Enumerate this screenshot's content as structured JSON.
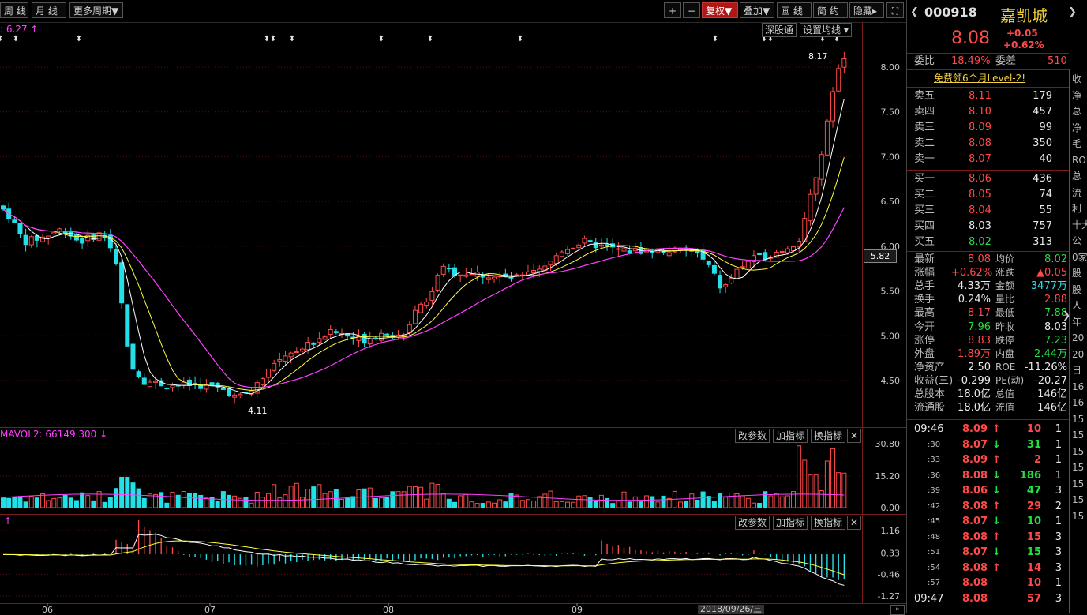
{
  "toolbar": {
    "weekly": "周 线",
    "monthly": "月 线",
    "more_period": "更多周期▼",
    "plus": "+",
    "minus": "−",
    "fuquan": "复权▼",
    "overlay": "叠加▼",
    "draw": "画 线",
    "simple": "简 约",
    "hide": "隐藏▸"
  },
  "price_chart": {
    "ma_label": ": 6.27 ↑",
    "shengutong": "深股通",
    "set_ma": "设置均线 ▾",
    "high_label": "8.17",
    "low_label": "4.11",
    "y_ticks": [
      "8.00",
      "7.50",
      "7.00",
      "6.50",
      "6.00",
      "5.50",
      "5.00",
      "4.50"
    ],
    "current_price_tag": "5.82",
    "x_ticks": [
      "06",
      "07",
      "08",
      "09"
    ],
    "date_tag": "2018/09/26/三"
  },
  "volume_chart": {
    "label": "MAVOL2: 66149.300 ↓",
    "y_ticks": [
      "30.80",
      "15.20",
      "0.00"
    ],
    "btn_params": "改参数",
    "btn_add": "加指标",
    "btn_switch": "换指标"
  },
  "macd_chart": {
    "y_ticks": [
      "1.16",
      "0.33",
      "-0.46",
      "-1.27"
    ],
    "btn_params": "改参数",
    "btn_add": "加指标",
    "btn_switch": "换指标"
  },
  "stock": {
    "code": "000918",
    "name": "嘉凯城",
    "price": "8.08",
    "change": "+0.05",
    "change_pct": "+0.62%",
    "weibi_label": "委比",
    "weibi": "18.49%",
    "weicha_label": "委差",
    "weicha": "510",
    "promo": "免费领6个月Level-2!"
  },
  "asks": [
    {
      "label": "卖五",
      "price": "8.11",
      "vol": "179"
    },
    {
      "label": "卖四",
      "price": "8.10",
      "vol": "457"
    },
    {
      "label": "卖三",
      "price": "8.09",
      "vol": "99"
    },
    {
      "label": "卖二",
      "price": "8.08",
      "vol": "350"
    },
    {
      "label": "卖一",
      "price": "8.07",
      "vol": "40"
    }
  ],
  "bids": [
    {
      "label": "买一",
      "price": "8.06",
      "vol": "436",
      "color": "red"
    },
    {
      "label": "买二",
      "price": "8.05",
      "vol": "74",
      "color": "red"
    },
    {
      "label": "买三",
      "price": "8.04",
      "vol": "55",
      "color": "red"
    },
    {
      "label": "买四",
      "price": "8.03",
      "vol": "757",
      "color": "white"
    },
    {
      "label": "买五",
      "price": "8.02",
      "vol": "313",
      "color": "green"
    }
  ],
  "quote": [
    {
      "l1": "最新",
      "v1": "8.08",
      "c1": "red",
      "l2": "均价",
      "v2": "8.02",
      "c2": "green"
    },
    {
      "l1": "涨幅",
      "v1": "+0.62%",
      "c1": "red",
      "l2": "涨跌",
      "v2": "▲0.05",
      "c2": "red"
    },
    {
      "l1": "总手",
      "v1": "4.33万",
      "c1": "white",
      "l2": "金额",
      "v2": "3477万",
      "c2": "cyan"
    },
    {
      "l1": "换手",
      "v1": "0.24%",
      "c1": "white",
      "l2": "量比",
      "v2": "2.88",
      "c2": "red"
    },
    {
      "l1": "最高",
      "v1": "8.17",
      "c1": "red",
      "l2": "最低",
      "v2": "7.88",
      "c2": "green"
    },
    {
      "l1": "今开",
      "v1": "7.96",
      "c1": "green",
      "l2": "昨收",
      "v2": "8.03",
      "c2": "white"
    },
    {
      "l1": "涨停",
      "v1": "8.83",
      "c1": "red",
      "l2": "跌停",
      "v2": "7.23",
      "c2": "green"
    },
    {
      "l1": "外盘",
      "v1": "1.89万",
      "c1": "red",
      "l2": "内盘",
      "v2": "2.44万",
      "c2": "green"
    },
    {
      "l1": "净资产",
      "v1": "2.50",
      "c1": "white",
      "l2": "ROE",
      "v2": "-11.26%",
      "c2": "white"
    },
    {
      "l1": "收益(三)",
      "v1": "-0.299",
      "c1": "white",
      "l2": "PE(动)",
      "v2": "-20.27",
      "c2": "white"
    },
    {
      "l1": "总股本",
      "v1": "18.0亿",
      "c1": "white",
      "l2": "总值",
      "v2": "146亿",
      "c2": "white"
    },
    {
      "l1": "流通股",
      "v1": "18.0亿",
      "c1": "white",
      "l2": "流值",
      "v2": "146亿",
      "c2": "white"
    }
  ],
  "ticks": [
    {
      "time": "09:46",
      "price": "8.09",
      "dir": "up",
      "vol": "10",
      "n": "1"
    },
    {
      "time": ":30",
      "price": "8.07",
      "dir": "down",
      "vol": "31",
      "n": "1"
    },
    {
      "time": ":33",
      "price": "8.09",
      "dir": "up",
      "vol": "2",
      "n": "1"
    },
    {
      "time": ":36",
      "price": "8.08",
      "dir": "down",
      "vol": "186",
      "n": "1"
    },
    {
      "time": ":39",
      "price": "8.06",
      "dir": "down",
      "vol": "47",
      "n": "3"
    },
    {
      "time": ":42",
      "price": "8.08",
      "dir": "up",
      "vol": "29",
      "n": "2"
    },
    {
      "time": ":45",
      "price": "8.07",
      "dir": "down",
      "vol": "10",
      "n": "1"
    },
    {
      "time": ":48",
      "price": "8.08",
      "dir": "up",
      "vol": "15",
      "n": "3"
    },
    {
      "time": ":51",
      "price": "8.07",
      "dir": "down",
      "vol": "15",
      "n": "3"
    },
    {
      "time": ":54",
      "price": "8.08",
      "dir": "up",
      "vol": "14",
      "n": "3"
    },
    {
      "time": ":57",
      "price": "8.08",
      "dir": "none",
      "vol": "10",
      "n": "1"
    },
    {
      "time": "09:47",
      "price": "8.08",
      "dir": "none",
      "vol": "57",
      "n": "3"
    }
  ],
  "right_edge_labels": [
    "收",
    "净",
    "总",
    "净",
    "毛",
    "ROE",
    "总",
    "流",
    "利",
    "十大",
    "公",
    "0家",
    "股",
    "股",
    "人",
    "年",
    "20",
    "20",
    "日",
    "16",
    "16",
    "15",
    "15",
    "15",
    "15",
    "15",
    "15",
    "15"
  ],
  "colors": {
    "up": "#ff4a4a",
    "down": "#22e0e8",
    "ma5": "#ffffff",
    "ma10": "#ffff40",
    "ma20": "#ff40ff"
  }
}
